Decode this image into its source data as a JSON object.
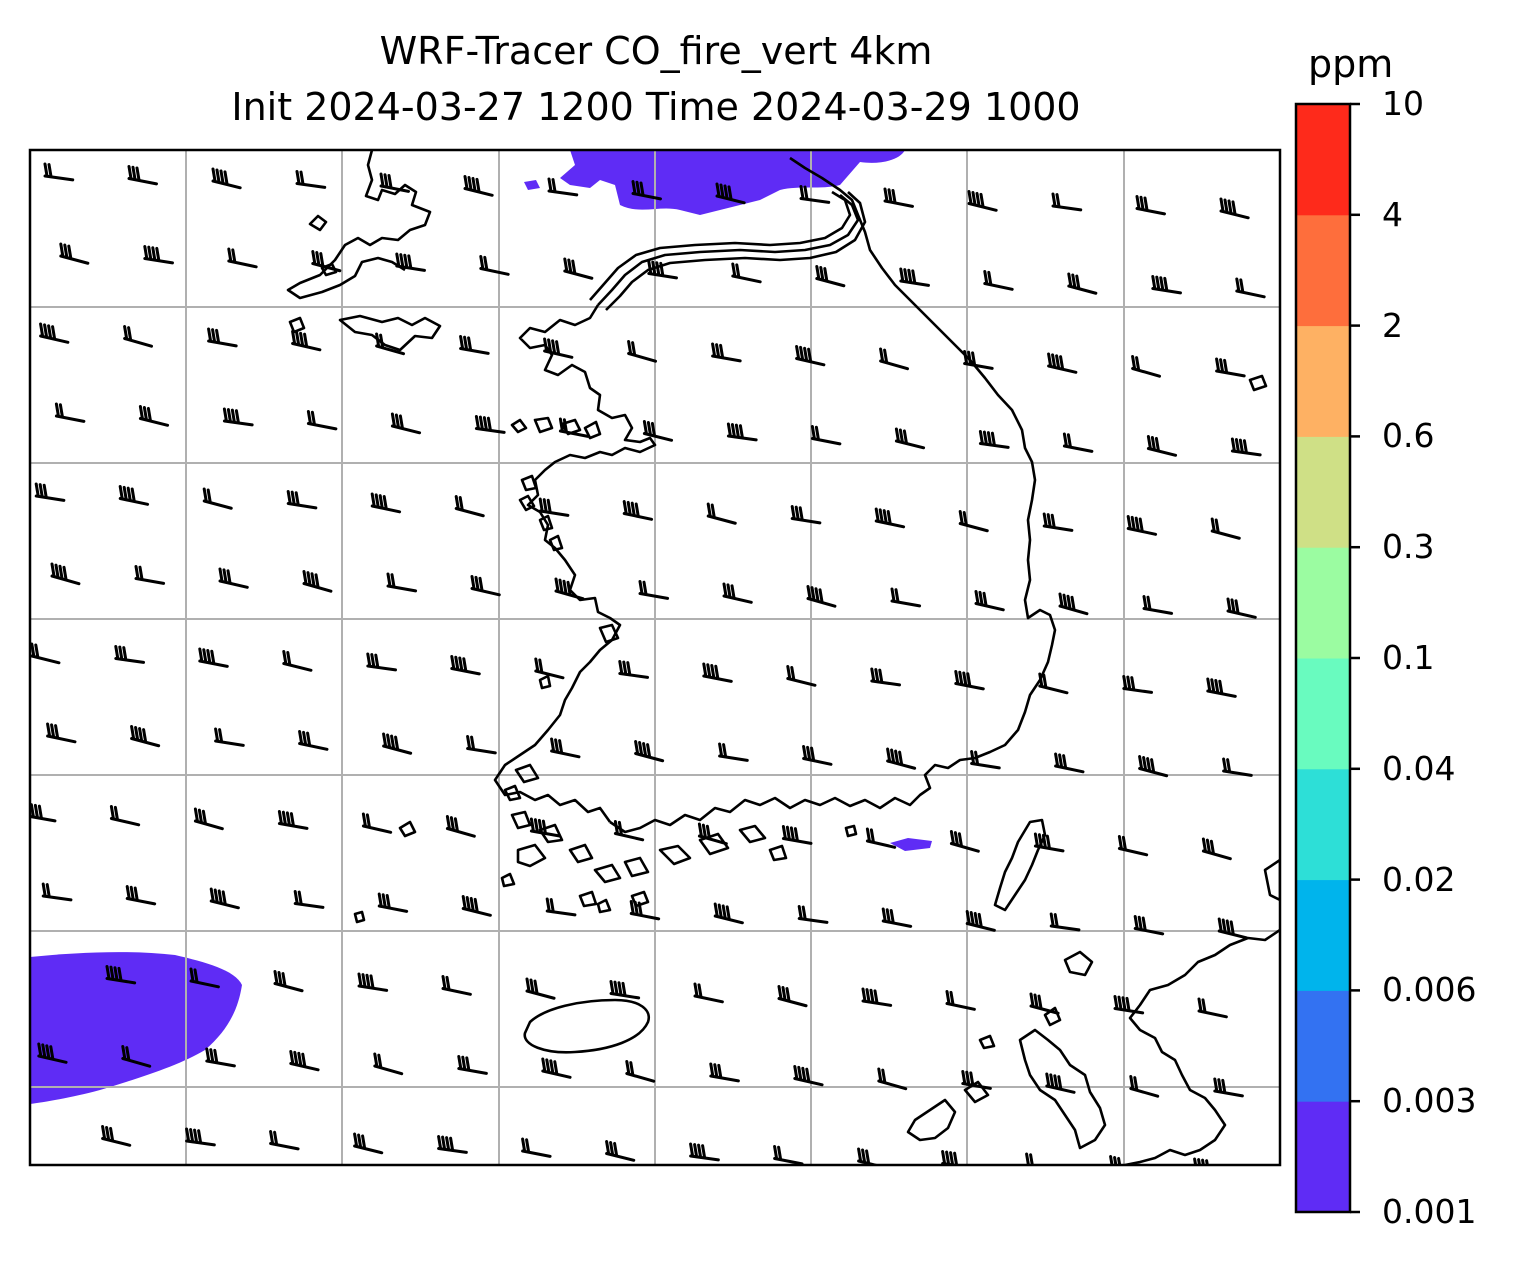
{
  "title": {
    "line1": "WRF-Tracer CO_fire_vert 4km",
    "line2": "Init 2024-03-27 1200 Time 2024-03-29 1000"
  },
  "colorbar": {
    "unit": "ppm",
    "levels": [
      "0.001",
      "0.003",
      "0.006",
      "0.02",
      "0.04",
      "0.1",
      "0.3",
      "0.6",
      "2",
      "4",
      "10"
    ],
    "colors": [
      "#5f2cf5",
      "#3372f2",
      "#00b4ec",
      "#2ddfd7",
      "#69fbbf",
      "#9bfca1",
      "#cfe086",
      "#feb163",
      "#fe6e3c",
      "#fe2a1b"
    ]
  },
  "colors": {
    "tracer_fill": "#5f2cf5",
    "coastline": "#000000",
    "gridline": "#b0b0b0",
    "barb": "#000000"
  }
}
